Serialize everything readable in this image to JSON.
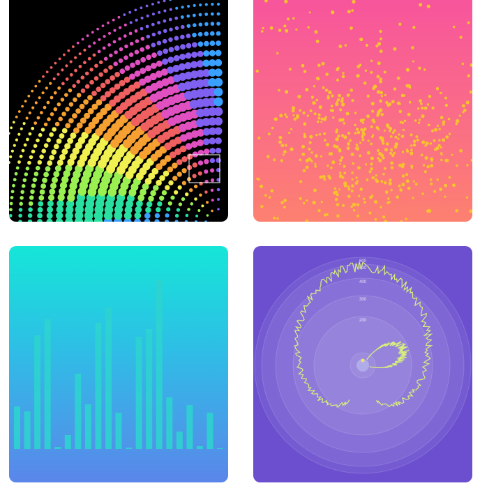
{
  "chart_data": [
    {
      "type": "scatter",
      "title": "",
      "style": "radial-dot-pattern",
      "colors": [
        "#3aa0ff",
        "#28e0a0",
        "#9af050",
        "#f0f050",
        "#f5a030",
        "#f06060",
        "#e050c0",
        "#8060f0"
      ]
    },
    {
      "type": "scatter",
      "title": "",
      "point_color": "#f7c12f",
      "background_top": "#f7559c",
      "background_bottom": "#fd8070"
    },
    {
      "type": "bar",
      "title": "",
      "bar_color": "#2ed3cf",
      "values": [
        61,
        54,
        163,
        186,
        3,
        20,
        108,
        64,
        181,
        203,
        52,
        2,
        161,
        172,
        243,
        74,
        25,
        63,
        4,
        52,
        1
      ]
    },
    {
      "type": "line",
      "projection": "polar",
      "title": "",
      "line_color": "#d8f07a",
      "radial_ticks": [
        "200",
        "300",
        "400",
        "500",
        "600"
      ]
    }
  ]
}
